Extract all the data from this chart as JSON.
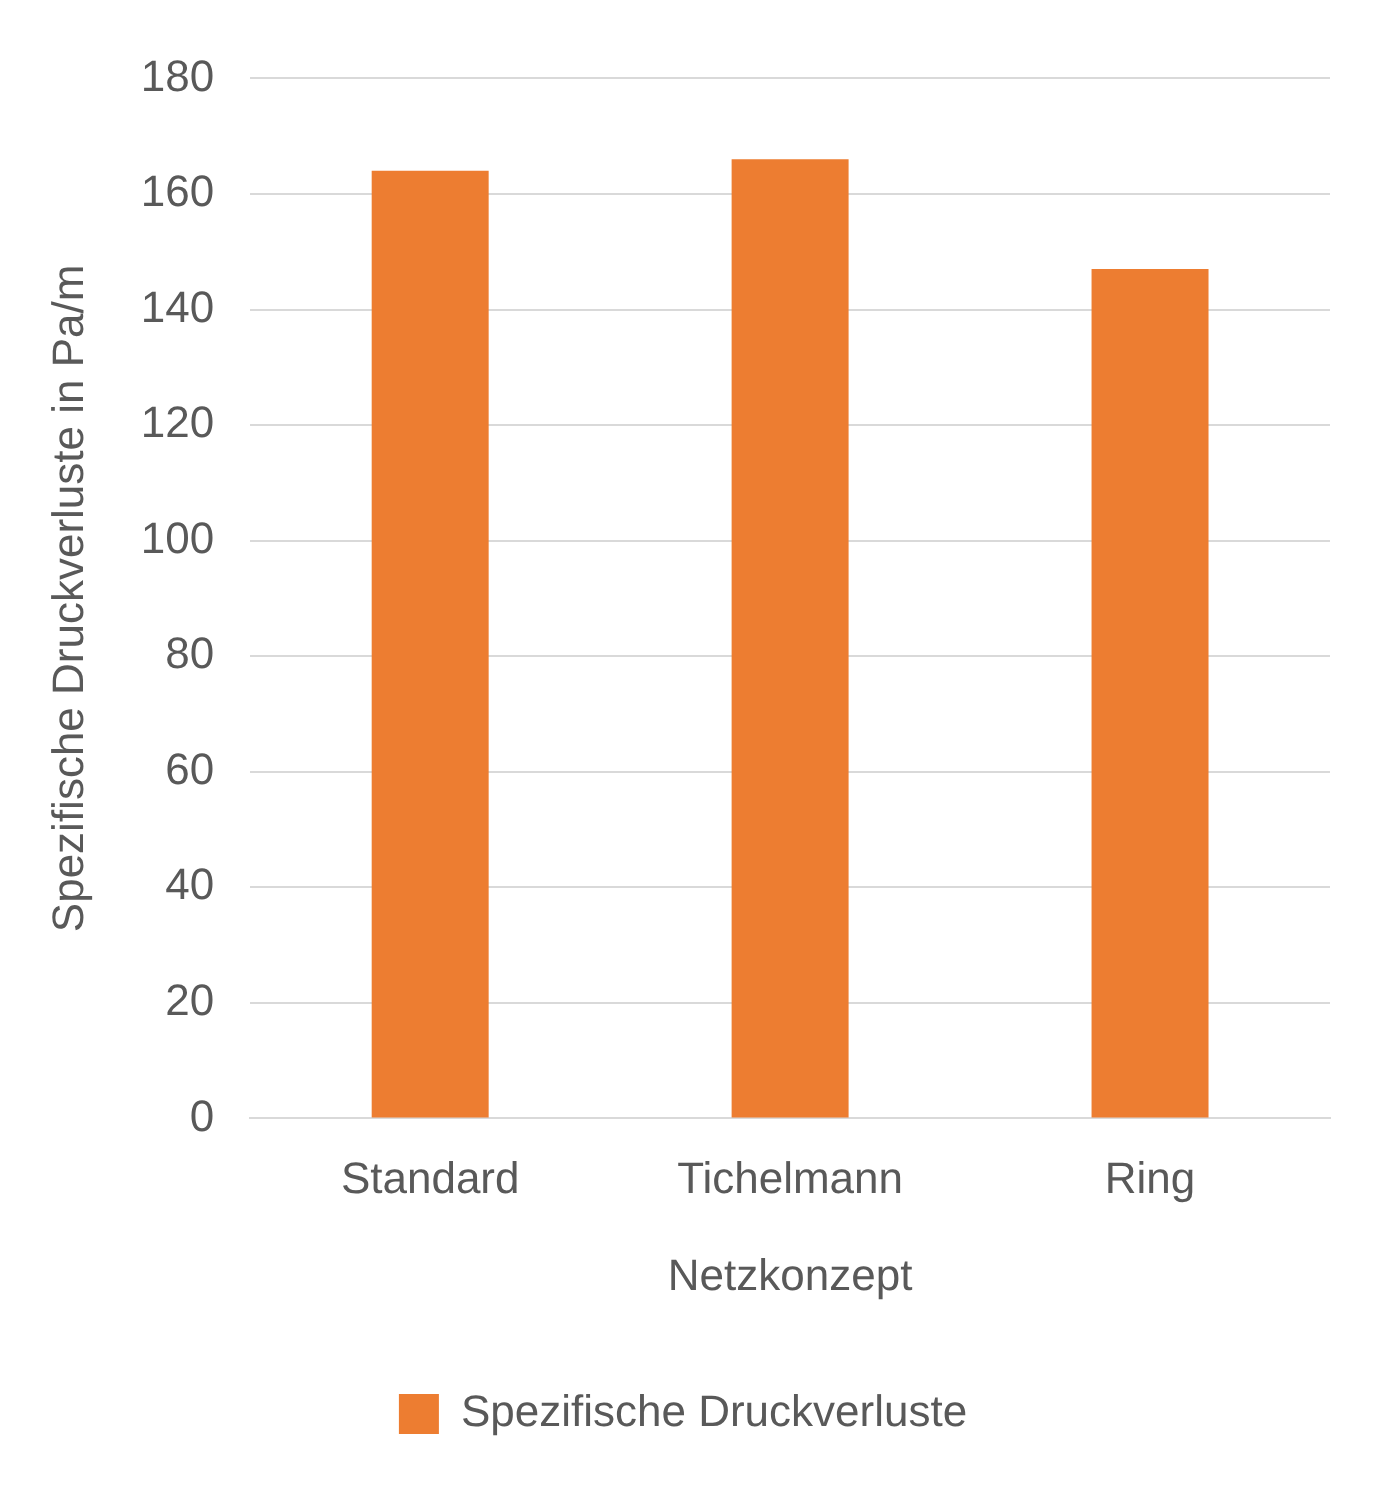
{
  "chart_data": {
    "type": "bar",
    "xlabel": "Netzkonzept",
    "ylabel": "Spezifische Druckverluste in Pa/m",
    "categories": [
      "Standard",
      "Tichelmann",
      "Ring"
    ],
    "series": [
      {
        "name": "Spezifische Druckverluste",
        "color": "#ed7d31",
        "values": [
          164,
          166,
          147
        ]
      }
    ],
    "ylim": [
      0,
      180
    ],
    "yticks": [
      0,
      20,
      40,
      60,
      80,
      100,
      120,
      140,
      160,
      180
    ],
    "grid": "y",
    "legend": "bottom"
  }
}
